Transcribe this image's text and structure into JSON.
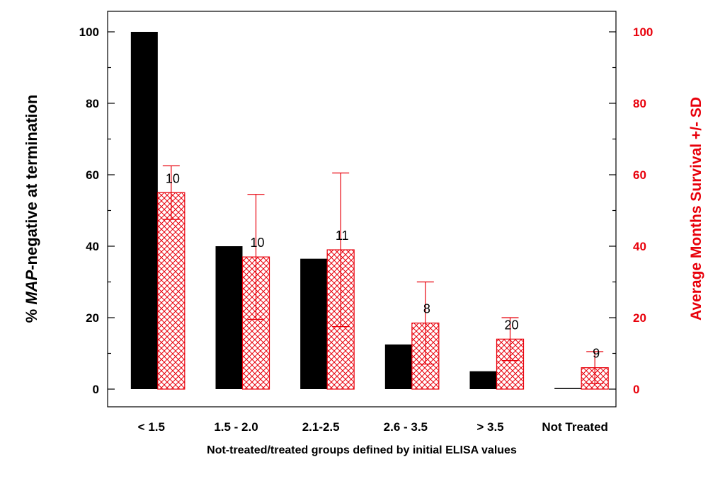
{
  "chart_data": {
    "type": "bar",
    "categories": [
      "< 1.5",
      "1.5 - 2.0",
      "2.1-2.5",
      "2.6 - 3.5",
      "> 3.5",
      "Not Treated"
    ],
    "xlabel": "Not-treated/treated groups defined by initial ELISA values",
    "ylabel_prefix": "% ",
    "ylabel_italic": "MAP",
    "ylabel_suffix": "-negative at termination",
    "y2label": "Average Months Survival +/- SD",
    "ylim": [
      0,
      100
    ],
    "y2lim": [
      0,
      100
    ],
    "yticks": [
      "0",
      "20",
      "40",
      "60",
      "80",
      "100"
    ],
    "y2ticks": [
      "0",
      "20",
      "40",
      "60",
      "80",
      "100"
    ],
    "grid": false,
    "series": [
      {
        "axis": "left",
        "color": "#000000",
        "fill": "solid",
        "values": [
          100,
          40,
          36.5,
          12.5,
          5,
          0.3
        ]
      },
      {
        "axis": "right",
        "color": "#e8000b",
        "fill": "crosshatch",
        "values": [
          55,
          37,
          39,
          18.5,
          14,
          6
        ],
        "error_plus_minus": [
          7.5,
          17.5,
          21.5,
          11.5,
          6,
          4.5
        ],
        "annotations": [
          "10",
          "10",
          "11",
          "8",
          "20",
          "9"
        ]
      }
    ]
  }
}
